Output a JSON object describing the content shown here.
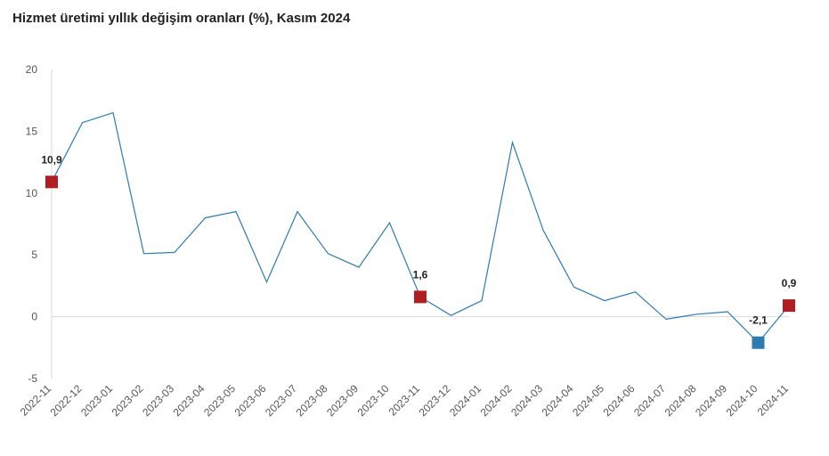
{
  "chart_data": {
    "type": "line",
    "title": "Hizmet üretimi yıllık değişim oranları (%), Kasım 2024",
    "xlabel": "",
    "ylabel": "",
    "categories": [
      "2022-11",
      "2022-12",
      "2023-01",
      "2023-02",
      "2023-03",
      "2023-04",
      "2023-05",
      "2023-06",
      "2023-07",
      "2023-08",
      "2023-09",
      "2023-10",
      "2023-11",
      "2023-12",
      "2024-01",
      "2024-02",
      "2024-03",
      "2024-04",
      "2024-05",
      "2024-06",
      "2024-07",
      "2024-08",
      "2024-09",
      "2024-10",
      "2024-11"
    ],
    "series": [
      {
        "values": [
          10.9,
          15.7,
          16.5,
          5.1,
          5.2,
          8.0,
          8.5,
          2.8,
          8.5,
          5.1,
          4.0,
          7.6,
          1.6,
          0.1,
          1.3,
          14.1,
          7.0,
          2.4,
          1.3,
          2.0,
          -0.2,
          0.2,
          0.4,
          -2.1,
          0.9
        ],
        "color": "#2e7bb0"
      }
    ],
    "ylim": [
      -5,
      20
    ],
    "yticks": [
      -5,
      0,
      5,
      10,
      15,
      20
    ],
    "highlights": [
      {
        "index": 0,
        "label": "10,9",
        "color": "#b01e23"
      },
      {
        "index": 12,
        "label": "1,6",
        "color": "#b01e23"
      },
      {
        "index": 23,
        "label": "-2,1",
        "color": "#2e7bb0"
      },
      {
        "index": 24,
        "label": "0,9",
        "color": "#b01e23"
      }
    ],
    "grid": false,
    "legend": "none"
  }
}
